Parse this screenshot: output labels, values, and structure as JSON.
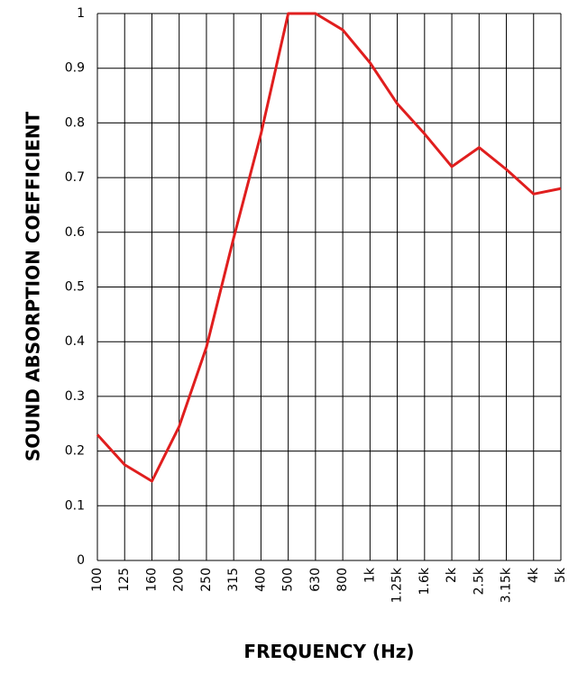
{
  "chart_data": {
    "type": "line",
    "x_label": "FREQUENCY (Hz)",
    "y_label": "SOUND ABSORPTION COEFFICIENT",
    "categories": [
      "100",
      "125",
      "160",
      "200",
      "250",
      "315",
      "400",
      "500",
      "630",
      "800",
      "1k",
      "1.25k",
      "1.6k",
      "2k",
      "2.5k",
      "3.15k",
      "4k",
      "5k"
    ],
    "series": [
      {
        "color": "#e01e1e",
        "values": [
          0.23,
          0.175,
          0.145,
          0.245,
          0.39,
          0.59,
          0.78,
          1.0,
          1.0,
          0.97,
          0.91,
          0.835,
          0.78,
          0.72,
          0.755,
          0.715,
          0.67,
          0.68
        ]
      }
    ],
    "ylim": [
      0,
      1
    ],
    "yticks": [
      0,
      0.1,
      0.2,
      0.3,
      0.4,
      0.5,
      0.6,
      0.7,
      0.8,
      0.9,
      1
    ],
    "grid": true
  }
}
